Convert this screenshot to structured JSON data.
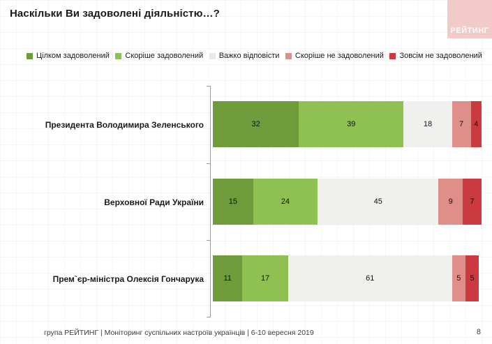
{
  "title": "Наскільки Ви задоволені діяльністю…?",
  "logo": {
    "text": "РЕЙТИНГ",
    "bg_color": "#f2cac7",
    "text_color": "#ffffff"
  },
  "legend": [
    {
      "label": "Цілком задоволений",
      "color": "#6e9c3a"
    },
    {
      "label": "Скоріше задоволений",
      "color": "#8ec152"
    },
    {
      "label": "Важко відповісти",
      "color": "#e9e9e7"
    },
    {
      "label": "Скоріше не задоволений",
      "color": "#e08e8a"
    },
    {
      "label": "Зовсім не задоволений",
      "color": "#cb3a3e"
    }
  ],
  "chart_data": {
    "type": "bar",
    "orientation": "horizontal",
    "stacked": true,
    "categories": [
      "Президента Володимира Зеленського",
      "Верховної Ради України",
      "Прем`єр-міністра Олексія Гончарука"
    ],
    "series": [
      {
        "name": "Цілком задоволений",
        "color": "#6e9c3a",
        "values": [
          32,
          15,
          11
        ]
      },
      {
        "name": "Скоріше задоволений",
        "color": "#8ec152",
        "values": [
          39,
          24,
          17
        ]
      },
      {
        "name": "Важко відповісти",
        "color": "#f0f0ee",
        "values": [
          18,
          45,
          61
        ]
      },
      {
        "name": "Скоріше не задоволений",
        "color": "#e08e8a",
        "values": [
          7,
          9,
          5
        ]
      },
      {
        "name": "Зовсім не задоволений",
        "color": "#cb3a3e",
        "values": [
          4,
          7,
          5
        ]
      }
    ],
    "xlim": [
      0,
      100
    ],
    "value_labels": "inside",
    "legend_position": "top",
    "grid": false,
    "axis_color": "#9d9d9d"
  },
  "footer": {
    "source": "група РЕЙТИНГ | Моніторинг суспільних настроїв українців | 6-10 вересня 2019",
    "page": "8"
  }
}
